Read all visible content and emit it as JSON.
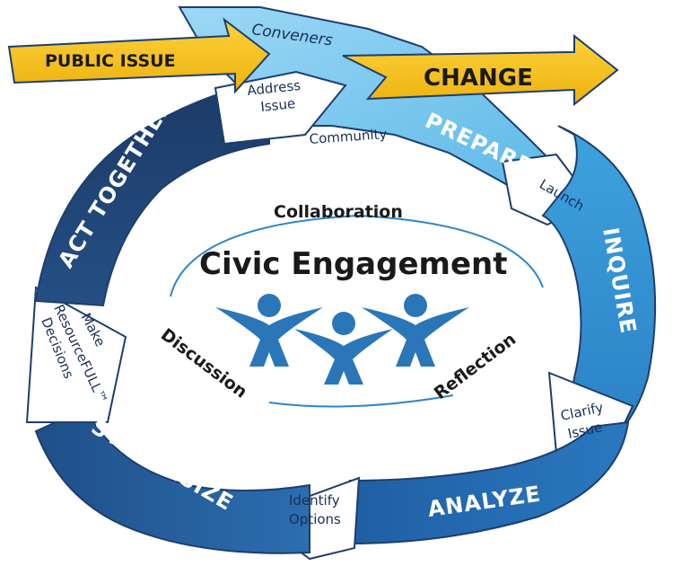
{
  "diagram": {
    "center": {
      "title": "Civic Engagement",
      "top_word": "Collaboration",
      "left_word": "Discussion",
      "right_word": "Reflection"
    },
    "arrows": {
      "public_issue": "PUBLIC ISSUE",
      "change": "CHANGE"
    },
    "band": {
      "conveners": "Conveners",
      "community": "Community"
    },
    "stages": {
      "prepare": "PREPARE",
      "inquire": "INQUIRE",
      "analyze": "ANALYZE",
      "synthesize": "SYNTHESIZE",
      "act_together": "ACT TOGETHER"
    },
    "transitions": {
      "launch": "Launch",
      "clarify_1": "Clarify",
      "clarify_2": "Issue",
      "identify_1": "Identify",
      "identify_2": "Options",
      "decision_1": "Make",
      "decision_2": "ResourceFULL™",
      "decision_3": "Decisions",
      "address_1": "Address",
      "address_2": "Issue"
    },
    "colors": {
      "yellow": "#f4c21a",
      "light_blue": "#7ec8ee",
      "mid_blue": "#2a86c9",
      "dark_blue": "#1f5a98",
      "navy": "#1d3e6e",
      "people_blue": "#2a76b8"
    }
  }
}
